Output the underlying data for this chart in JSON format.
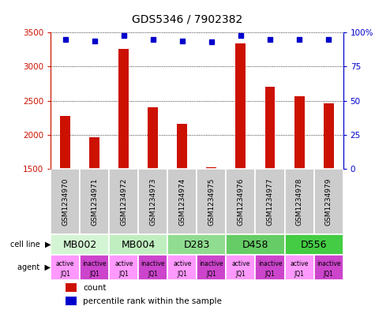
{
  "title": "GDS5346 / 7902382",
  "samples": [
    "GSM1234970",
    "GSM1234971",
    "GSM1234972",
    "GSM1234973",
    "GSM1234974",
    "GSM1234975",
    "GSM1234976",
    "GSM1234977",
    "GSM1234978",
    "GSM1234979"
  ],
  "counts": [
    2280,
    1960,
    3260,
    2400,
    2155,
    1520,
    3340,
    2700,
    2560,
    2460
  ],
  "percentiles": [
    95,
    94,
    98,
    95,
    94,
    93,
    98,
    95,
    95,
    95
  ],
  "ylim_left": [
    1500,
    3500
  ],
  "ylim_right": [
    0,
    100
  ],
  "yticks_left": [
    1500,
    2000,
    2500,
    3000,
    3500
  ],
  "yticks_right": [
    0,
    25,
    50,
    75,
    100
  ],
  "cell_lines": [
    {
      "name": "MB002",
      "cols": [
        0,
        1
      ],
      "color": "#d4f5d4"
    },
    {
      "name": "MB004",
      "cols": [
        2,
        3
      ],
      "color": "#c0eec0"
    },
    {
      "name": "D283",
      "cols": [
        4,
        5
      ],
      "color": "#90dc90"
    },
    {
      "name": "D458",
      "cols": [
        6,
        7
      ],
      "color": "#66cc66"
    },
    {
      "name": "D556",
      "cols": [
        8,
        9
      ],
      "color": "#44cc44"
    }
  ],
  "agent_active_color": "#ff99ff",
  "agent_inactive_color": "#cc44cc",
  "bar_color": "#cc1100",
  "dot_color": "#0000cc",
  "bar_width": 0.35,
  "title_fontsize": 10,
  "tick_fontsize": 7.5,
  "sample_label_fontsize": 6.5,
  "cell_label_fontsize": 9,
  "agent_label_fontsize": 5.5
}
